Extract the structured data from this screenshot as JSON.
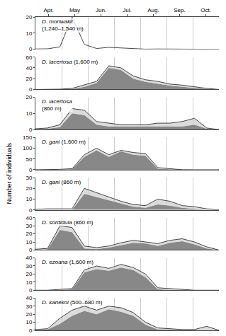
{
  "chart_data": [
    {
      "type": "area",
      "ylabel": "Number of individuals",
      "annotations": [
        "D. moriwakii\n(1,240–1,540 m)"
      ],
      "x": [
        0,
        0.4666666666666667,
        0.9333333333333333,
        1.4,
        1.8666666666666667,
        2.3333333333333335,
        2.8,
        3.2666666666666666,
        3.7333333333333334,
        4.2,
        4.666666666666667,
        5.133333333333334,
        5.6000000000000005,
        6.066666666666666,
        6.533333333333333,
        7
      ],
      "xlim": [
        0,
        7
      ],
      "xticks": [
        {
          "value": 0.5,
          "label": "Apr."
        },
        {
          "value": 1.5,
          "label": "May"
        },
        {
          "value": 2.5,
          "label": "Jun."
        },
        {
          "value": 3.5,
          "label": "Jul."
        },
        {
          "value": 4.5,
          "label": "Aug."
        },
        {
          "value": 5.5,
          "label": "Sep."
        },
        {
          "value": 6.5,
          "label": "Oct."
        }
      ],
      "ylim": [
        0,
        20
      ],
      "yticks": [
        0,
        10,
        20
      ],
      "grid": true,
      "series": [
        {
          "type": "line",
          "color": "#444444",
          "values": [
            0.2,
            0.3,
            1.5,
            20,
            3,
            0.5,
            1.2,
            0.8,
            0.2,
            0.1,
            0.2,
            0.1,
            0.0,
            0.0,
            0.0,
            0.0
          ]
        }
      ]
    },
    {
      "type": "area",
      "tick_labels": "y",
      "annotations": [
        "D. lacertosa (1,600 m)"
      ],
      "x": [
        0,
        0.4666666666666667,
        0.9333333333333333,
        1.4,
        1.8666666666666667,
        2.3333333333333335,
        2.8,
        3.2666666666666666,
        3.7333333333333334,
        4.2,
        4.666666666666667,
        5.133333333333334,
        5.6000000000000005,
        6.066666666666666,
        6.533333333333333,
        7
      ],
      "xlim": [
        0,
        7
      ],
      "xticks": [
        {
          "value": 0.5,
          "label": "Apr."
        },
        {
          "value": 1.5,
          "label": "May"
        },
        {
          "value": 2.5,
          "label": "Jun."
        },
        {
          "value": 3.5,
          "label": "Jul."
        },
        {
          "value": 4.5,
          "label": "Aug."
        },
        {
          "value": 5.5,
          "label": "Sep."
        },
        {
          "value": 6.5,
          "label": "Oct."
        }
      ],
      "ylim": [
        0,
        60
      ],
      "yticks": [
        0,
        20,
        40,
        60
      ],
      "grid": true,
      "series": [
        {
          "type": "area",
          "color": "#888888",
          "values": [
            0,
            0,
            0,
            1,
            5,
            12,
            40,
            36,
            20,
            14,
            11,
            7,
            5,
            3,
            1,
            0
          ]
        },
        {
          "type": "line",
          "color": "#444444",
          "values": [
            0,
            0,
            0.5,
            2,
            8,
            15,
            44,
            40,
            25,
            18,
            15,
            10,
            8,
            5,
            2,
            0
          ]
        }
      ]
    },
    {
      "type": "area",
      "tick_labels": "y",
      "annotations": [
        "D. lacertosa\n(860 m)"
      ],
      "x": [
        0,
        0.4666666666666667,
        0.9333333333333333,
        1.4,
        1.8666666666666667,
        2.3333333333333335,
        2.8,
        3.2666666666666666,
        3.7333333333333334,
        4.2,
        4.666666666666667,
        5.133333333333334,
        5.6000000000000005,
        6.066666666666666,
        6.533333333333333,
        7
      ],
      "xlim": [
        0,
        7
      ],
      "xticks": [
        {
          "value": 0.5,
          "label": "Apr."
        },
        {
          "value": 1.5,
          "label": "May"
        },
        {
          "value": 2.5,
          "label": "Jun."
        },
        {
          "value": 3.5,
          "label": "Jul."
        },
        {
          "value": 4.5,
          "label": "Aug."
        },
        {
          "value": 5.5,
          "label": "Sep."
        },
        {
          "value": 6.5,
          "label": "Oct."
        }
      ],
      "ylim": [
        0,
        20
      ],
      "yticks": [
        0,
        10,
        20
      ],
      "grid": true,
      "series": [
        {
          "type": "area",
          "color": "#888888",
          "values": [
            0.2,
            0.5,
            1.5,
            10,
            9,
            3,
            2,
            2,
            2,
            2,
            2,
            2,
            2,
            3,
            0.5,
            0
          ]
        },
        {
          "type": "line",
          "color": "#444444",
          "values": [
            0.5,
            1,
            3,
            13,
            12,
            5,
            4,
            3,
            3,
            3,
            4,
            4,
            5,
            7,
            1,
            0
          ]
        }
      ]
    },
    {
      "type": "area",
      "tick_labels": "y",
      "annotations": [
        "D. gani (1,600 m)"
      ],
      "x": [
        0,
        0.4666666666666667,
        0.9333333333333333,
        1.4,
        1.8666666666666667,
        2.3333333333333335,
        2.8,
        3.2666666666666666,
        3.7333333333333334,
        4.2,
        4.666666666666667,
        5.133333333333334,
        5.6000000000000005,
        6.066666666666666,
        6.533333333333333,
        7
      ],
      "xlim": [
        0,
        7
      ],
      "xticks": [
        {
          "value": 0.5,
          "label": "Apr."
        },
        {
          "value": 1.5,
          "label": "May"
        },
        {
          "value": 2.5,
          "label": "Jun."
        },
        {
          "value": 3.5,
          "label": "Jul."
        },
        {
          "value": 4.5,
          "label": "Aug."
        },
        {
          "value": 5.5,
          "label": "Sep."
        },
        {
          "value": 6.5,
          "label": "Oct."
        }
      ],
      "ylim": [
        0,
        150
      ],
      "yticks": [
        0,
        50,
        100,
        150
      ],
      "grid": true,
      "series": [
        {
          "type": "area",
          "color": "#888888",
          "values": [
            0,
            0,
            0,
            3,
            60,
            90,
            60,
            85,
            70,
            65,
            5,
            2,
            0,
            0,
            0,
            0
          ]
        },
        {
          "type": "line",
          "color": "#444444",
          "values": [
            0,
            0,
            2,
            5,
            70,
            100,
            70,
            90,
            80,
            75,
            10,
            5,
            0,
            0,
            0,
            0
          ]
        }
      ]
    },
    {
      "type": "area",
      "tick_labels": "y",
      "annotations": [
        "D. gani (860 m)"
      ],
      "x": [
        0,
        0.4666666666666667,
        0.9333333333333333,
        1.4,
        1.8666666666666667,
        2.3333333333333335,
        2.8,
        3.2666666666666666,
        3.7333333333333334,
        4.2,
        4.666666666666667,
        5.133333333333334,
        5.6000000000000005,
        6.066666666666666,
        6.533333333333333,
        7
      ],
      "xlim": [
        0,
        7
      ],
      "xticks": [
        {
          "value": 0.5,
          "label": "Apr."
        },
        {
          "value": 1.5,
          "label": "May"
        },
        {
          "value": 2.5,
          "label": "Jun."
        },
        {
          "value": 3.5,
          "label": "Jul."
        },
        {
          "value": 4.5,
          "label": "Aug."
        },
        {
          "value": 5.5,
          "label": "Sep."
        },
        {
          "value": 6.5,
          "label": "Oct."
        }
      ],
      "ylim": [
        0,
        30
      ],
      "yticks": [
        0,
        10,
        20,
        30
      ],
      "grid": true,
      "series": [
        {
          "type": "area",
          "color": "#888888",
          "values": [
            0,
            0,
            0,
            0,
            15,
            12,
            9,
            6,
            3,
            2,
            5,
            4,
            2,
            1,
            0,
            0
          ]
        },
        {
          "type": "line",
          "color": "#444444",
          "values": [
            0.5,
            1,
            1,
            1,
            20,
            16,
            12,
            8,
            5,
            4,
            10,
            8,
            4,
            3,
            1,
            0
          ]
        }
      ]
    },
    {
      "type": "area",
      "tick_labels": "y",
      "annotations": [
        "D. sordidula (860 m)"
      ],
      "x": [
        0,
        0.4666666666666667,
        0.9333333333333333,
        1.4,
        1.8666666666666667,
        2.3333333333333335,
        2.8,
        3.2666666666666666,
        3.7333333333333334,
        4.2,
        4.666666666666667,
        5.133333333333334,
        5.6000000000000005,
        6.066666666666666,
        6.533333333333333,
        7
      ],
      "xlim": [
        0,
        7
      ],
      "xticks": [
        {
          "value": 0.5,
          "label": "Apr."
        },
        {
          "value": 1.5,
          "label": "May"
        },
        {
          "value": 2.5,
          "label": "Jun."
        },
        {
          "value": 3.5,
          "label": "Jul."
        },
        {
          "value": 4.5,
          "label": "Aug."
        },
        {
          "value": 5.5,
          "label": "Sep."
        },
        {
          "value": 6.5,
          "label": "Oct."
        }
      ],
      "ylim": [
        0,
        40
      ],
      "yticks": [
        0,
        10,
        20,
        30,
        40
      ],
      "grid": true,
      "series": [
        {
          "type": "area",
          "color": "#888888",
          "values": [
            0,
            1,
            25,
            22,
            2,
            1,
            3,
            6,
            9,
            8,
            5,
            9,
            11,
            7,
            2,
            0
          ]
        },
        {
          "type": "line",
          "color": "#444444",
          "values": [
            1,
            2,
            30,
            28,
            5,
            3,
            5,
            9,
            12,
            10,
            8,
            12,
            14,
            10,
            4,
            0
          ]
        }
      ]
    },
    {
      "type": "area",
      "tick_labels": "y",
      "annotations": [
        "D. ezoana (1,600 m)"
      ],
      "x": [
        0,
        0.4666666666666667,
        0.9333333333333333,
        1.4,
        1.8666666666666667,
        2.3333333333333335,
        2.8,
        3.2666666666666666,
        3.7333333333333334,
        4.2,
        4.666666666666667,
        5.133333333333334,
        5.6000000000000005,
        6.066666666666666,
        6.533333333333333,
        7
      ],
      "xlim": [
        0,
        7
      ],
      "xticks": [
        {
          "value": 0.5,
          "label": "Apr."
        },
        {
          "value": 1.5,
          "label": "May"
        },
        {
          "value": 2.5,
          "label": "Jun."
        },
        {
          "value": 3.5,
          "label": "Jul."
        },
        {
          "value": 4.5,
          "label": "Aug."
        },
        {
          "value": 5.5,
          "label": "Sep."
        },
        {
          "value": 6.5,
          "label": "Oct."
        }
      ],
      "ylim": [
        0,
        40
      ],
      "yticks": [
        0,
        10,
        20,
        30,
        40
      ],
      "grid": true,
      "series": [
        {
          "type": "area",
          "color": "#888888",
          "values": [
            0,
            0,
            0.5,
            1,
            22,
            26,
            24,
            28,
            25,
            16,
            1,
            0.5,
            0,
            0,
            0,
            0
          ]
        },
        {
          "type": "line",
          "color": "#444444",
          "values": [
            0,
            0,
            1,
            2,
            25,
            30,
            27,
            32,
            28,
            20,
            3,
            2,
            1,
            0,
            0,
            0
          ]
        }
      ]
    },
    {
      "type": "area",
      "tick_labels": "y",
      "annotations": [
        "D. kanekoi (500–680 m)"
      ],
      "x": [
        0,
        0.4666666666666667,
        0.9333333333333333,
        1.4,
        1.8666666666666667,
        2.3333333333333335,
        2.8,
        3.2666666666666666,
        3.7333333333333334,
        4.2,
        4.666666666666667,
        5.133333333333334,
        5.6000000000000005,
        6.066666666666666,
        6.533333333333333,
        7
      ],
      "xlim": [
        0,
        7
      ],
      "xticks": [
        {
          "value": 0.5,
          "label": "Apr."
        },
        {
          "value": 1.5,
          "label": "May"
        },
        {
          "value": 2.5,
          "label": "Jun."
        },
        {
          "value": 3.5,
          "label": "Jul."
        },
        {
          "value": 4.5,
          "label": "Aug."
        },
        {
          "value": 5.5,
          "label": "Sep."
        },
        {
          "value": 6.5,
          "label": "Oct."
        }
      ],
      "ylim": [
        0,
        40
      ],
      "yticks": [
        0,
        10,
        20,
        30,
        40
      ],
      "grid": true,
      "series": [
        {
          "type": "area",
          "color": "#888888",
          "values": [
            0,
            1,
            8,
            18,
            24,
            20,
            26,
            23,
            18,
            7,
            1,
            0.5,
            0,
            0,
            0,
            0
          ]
        },
        {
          "type": "line",
          "color": "#444444",
          "values": [
            1,
            2,
            15,
            25,
            30,
            25,
            30,
            28,
            22,
            10,
            3,
            2,
            1,
            1,
            5,
            0
          ]
        }
      ]
    }
  ]
}
